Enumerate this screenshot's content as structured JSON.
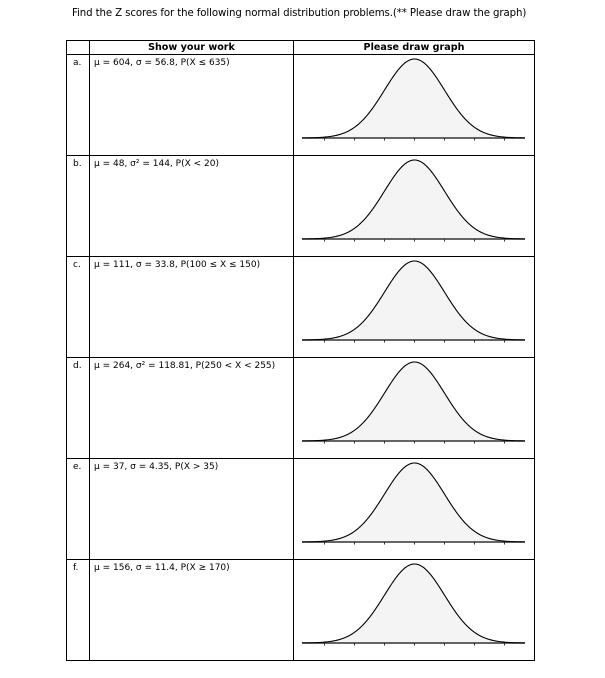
{
  "title": "Find the Z scores for the following normal distribution problems.(** Please draw the graph)",
  "table": {
    "headers": [
      "",
      "Show your work",
      "Please draw graph"
    ],
    "rows": [
      {
        "label": "a.",
        "problem": "μ = 604, σ = 56.8, P(X ≤ 635)"
      },
      {
        "label": "b.",
        "problem": "μ = 48, σ² = 144, P(X < 20)"
      },
      {
        "label": "c.",
        "problem": "μ = 111, σ = 33.8, P(100 ≤ X ≤ 150)"
      },
      {
        "label": "d.",
        "problem": "μ = 264, σ² = 118.81, P(250 < X < 255)"
      },
      {
        "label": "e.",
        "problem": "μ = 37, σ = 4.35, P(X > 35)"
      },
      {
        "label": "f.",
        "problem": "μ = 156, σ = 11.4, P(X ≥ 170)"
      }
    ]
  },
  "graph": {
    "type": "normal-curve",
    "fill_color": "#f4f4f4",
    "line_color": "#000000",
    "tick_count": 7
  }
}
